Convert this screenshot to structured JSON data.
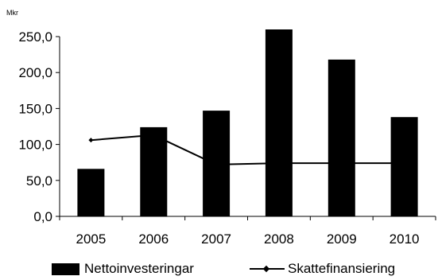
{
  "chart_data": {
    "type": "bar",
    "unit_label": "Mkr",
    "categories": [
      "2005",
      "2006",
      "2007",
      "2008",
      "2009",
      "2010"
    ],
    "series": [
      {
        "name": "Nettoinvesteringar",
        "type": "bar",
        "color": "#000000",
        "values": [
          66,
          124,
          147,
          260,
          218,
          138
        ]
      },
      {
        "name": "Skattefinansiering",
        "type": "line",
        "color": "#000000",
        "marker": "diamond",
        "values": [
          106,
          113,
          72,
          74,
          74,
          74
        ]
      }
    ],
    "ylim": [
      0,
      250
    ],
    "yticks": [
      0,
      50,
      100,
      150,
      200,
      250
    ],
    "ytick_labels": [
      "0,0",
      "50,0",
      "100,0",
      "150,0",
      "200,0",
      "250,0"
    ],
    "grid": false,
    "legend_position": "bottom"
  }
}
